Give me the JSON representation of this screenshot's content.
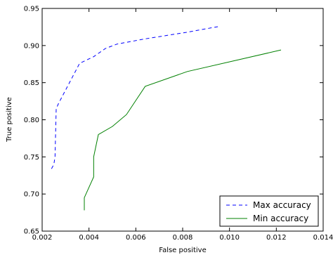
{
  "chart_data": {
    "type": "line",
    "title": "",
    "xlabel": "False positive",
    "ylabel": "True positive",
    "xlim": [
      0.002,
      0.014
    ],
    "ylim": [
      0.65,
      0.95
    ],
    "x_ticks": [
      "0.002",
      "0.004",
      "0.006",
      "0.008",
      "0.010",
      "0.012",
      "0.014"
    ],
    "y_ticks": [
      "0.65",
      "0.70",
      "0.75",
      "0.80",
      "0.85",
      "0.90",
      "0.95"
    ],
    "grid": false,
    "legend_position": "bottom-right",
    "series": [
      {
        "name": "Max accuracy",
        "color": "#0000ff",
        "style": "dashed",
        "points": [
          [
            0.0024,
            0.734
          ],
          [
            0.0025,
            0.74
          ],
          [
            0.00255,
            0.75
          ],
          [
            0.0026,
            0.815
          ],
          [
            0.0027,
            0.822
          ],
          [
            0.0036,
            0.876
          ],
          [
            0.0042,
            0.885
          ],
          [
            0.0047,
            0.896
          ],
          [
            0.0052,
            0.902
          ],
          [
            0.0064,
            0.909
          ],
          [
            0.0082,
            0.918
          ],
          [
            0.0096,
            0.926
          ]
        ]
      },
      {
        "name": "Min accuracy",
        "color": "#008000",
        "style": "solid",
        "points": [
          [
            0.0038,
            0.678
          ],
          [
            0.0038,
            0.695
          ],
          [
            0.0042,
            0.723
          ],
          [
            0.0042,
            0.75
          ],
          [
            0.0044,
            0.78
          ],
          [
            0.005,
            0.791
          ],
          [
            0.0056,
            0.807
          ],
          [
            0.0064,
            0.845
          ],
          [
            0.0082,
            0.865
          ],
          [
            0.0122,
            0.894
          ]
        ]
      }
    ]
  }
}
